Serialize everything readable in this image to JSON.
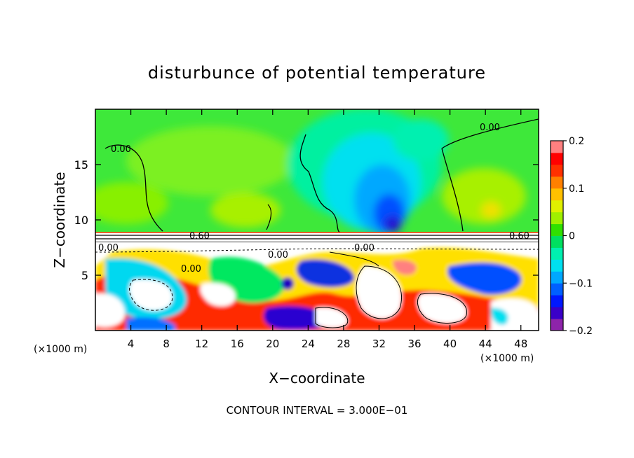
{
  "chart_data": {
    "type": "heatmap",
    "title": "disturbunce of potential temperature",
    "xlabel": "X−coordinate",
    "ylabel": "Z−coordinate",
    "x_unit_left": "(×1000 m)",
    "x_unit_right": "(×1000 m)",
    "xlim": [
      0,
      50
    ],
    "ylim": [
      0,
      20
    ],
    "x_ticks": [
      "4",
      "8",
      "12",
      "16",
      "20",
      "24",
      "28",
      "32",
      "36",
      "40",
      "44",
      "48"
    ],
    "y_ticks": [
      "5",
      "10",
      "15"
    ],
    "colorbar": {
      "range": [
        -0.2,
        0.2
      ],
      "tick_labels": [
        "0.2",
        "0.1",
        "0",
        "−0.1",
        "−0.2"
      ],
      "colors": [
        "#8e24aa",
        "#3a00c8",
        "#0018ff",
        "#0060ff",
        "#00a8ff",
        "#00e0f0",
        "#00f0b0",
        "#00e060",
        "#30e000",
        "#a0f000",
        "#e0f000",
        "#ffc000",
        "#ff8000",
        "#ff3000",
        "#ff0000",
        "#ff8080"
      ]
    },
    "contour_labels": [
      "0.00",
      "0.00",
      "0.60",
      "0.60",
      "0.00",
      "0.00",
      "0.00",
      "0.00"
    ],
    "footer": "CONTOUR INTERVAL = 3.000E−01",
    "grid": false
  }
}
